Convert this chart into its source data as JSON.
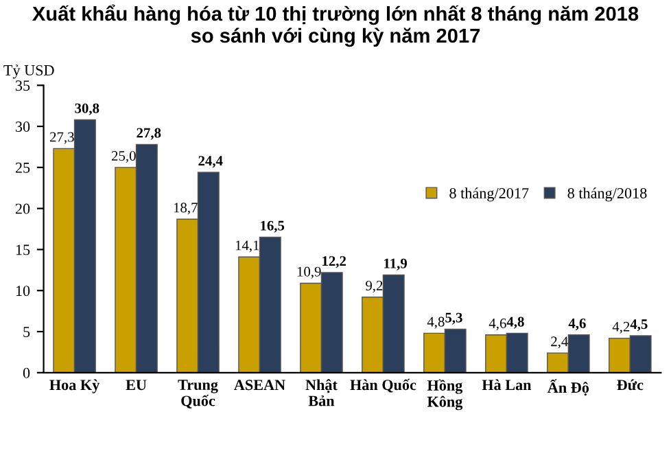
{
  "chart_data": {
    "type": "bar",
    "title": "Xuất khẩu hàng hóa từ 10 thị trường lớn nhất 8 tháng năm 2018\nso sánh với cùng kỳ năm 2017",
    "ylabel": "Tỷ USD",
    "categories": [
      "Hoa Kỳ",
      "EU",
      "Trung\nQuốc",
      "ASEAN",
      "Nhật\nBản",
      "Hàn Quốc",
      "Hồng\nKông",
      "Hà Lan",
      "Ấn Độ",
      "Đức"
    ],
    "series": [
      {
        "name": "8 tháng/2017",
        "color": "#c9a000",
        "values": [
          27.3,
          25.0,
          18.7,
          14.1,
          10.9,
          9.2,
          4.8,
          4.6,
          2.4,
          4.2
        ],
        "value_labels": [
          "27,3",
          "25,0",
          "18,7",
          "14,1",
          "10,9",
          "9,2",
          "4,8",
          "4,6",
          "2,4",
          "4,2"
        ]
      },
      {
        "name": "8 tháng/2018",
        "color": "#2b3f5c",
        "values": [
          30.8,
          27.8,
          24.4,
          16.5,
          12.2,
          11.9,
          5.3,
          4.8,
          4.6,
          4.5
        ],
        "value_labels": [
          "30,8",
          "27,8",
          "24,4",
          "16,5",
          "12,2",
          "11,9",
          "5,3",
          "4,8",
          "4,6",
          "4,5"
        ]
      }
    ],
    "ylim": [
      0,
      35
    ],
    "yticks": [
      0,
      5,
      10,
      15,
      20,
      25,
      30,
      35
    ],
    "grid": false,
    "legend": "right"
  }
}
